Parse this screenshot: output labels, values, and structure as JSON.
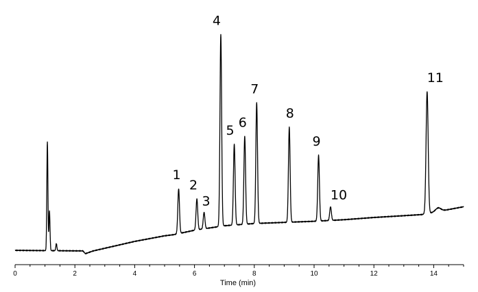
{
  "chart_data": {
    "type": "line",
    "title": "",
    "xlabel": "Time (min)",
    "ylabel": "",
    "xlim": [
      0,
      15
    ],
    "ylim": [
      0,
      100
    ],
    "x_ticks": [
      0,
      2,
      4,
      6,
      8,
      10,
      12,
      14
    ],
    "grid": false,
    "line_color": "#000000",
    "baseline": {
      "start": [
        0,
        1.5
      ],
      "dip": [
        2.35,
        0.0
      ],
      "points": [
        [
          2.6,
          1.2
        ],
        [
          4,
          5.5
        ],
        [
          5.0,
          8.0
        ],
        [
          5.3,
          8.5
        ],
        [
          6,
          10.5
        ],
        [
          7,
          12.5
        ],
        [
          8,
          13.5
        ],
        [
          9,
          14.0
        ],
        [
          10,
          14.5
        ],
        [
          11,
          15.2
        ],
        [
          12,
          16.2
        ],
        [
          13,
          17.0
        ],
        [
          13.6,
          17.5
        ],
        [
          15,
          21.0
        ]
      ]
    },
    "unlabeled_peaks": [
      {
        "x": 1.08,
        "y": 50
      },
      {
        "x": 1.15,
        "y": 19
      },
      {
        "x": 1.38,
        "y": 4.5
      }
    ],
    "peaks": [
      {
        "label": "1",
        "x": 5.47,
        "y": 29.0
      },
      {
        "label": "2",
        "x": 6.08,
        "y": 24.5
      },
      {
        "label": "3",
        "x": 6.32,
        "y": 18.5
      },
      {
        "label": "4",
        "x": 6.88,
        "y": 98.0
      },
      {
        "label": "5",
        "x": 7.33,
        "y": 49.0
      },
      {
        "label": "6",
        "x": 7.68,
        "y": 52.5
      },
      {
        "label": "7",
        "x": 8.08,
        "y": 67.5
      },
      {
        "label": "8",
        "x": 9.17,
        "y": 56.5
      },
      {
        "label": "9",
        "x": 10.15,
        "y": 44.0
      },
      {
        "label": "10",
        "x": 10.55,
        "y": 21.0
      },
      {
        "label": "11",
        "x": 13.78,
        "y": 72.5
      }
    ],
    "shoulder_after_11": {
      "x": 14.15,
      "y": 20.5
    }
  }
}
